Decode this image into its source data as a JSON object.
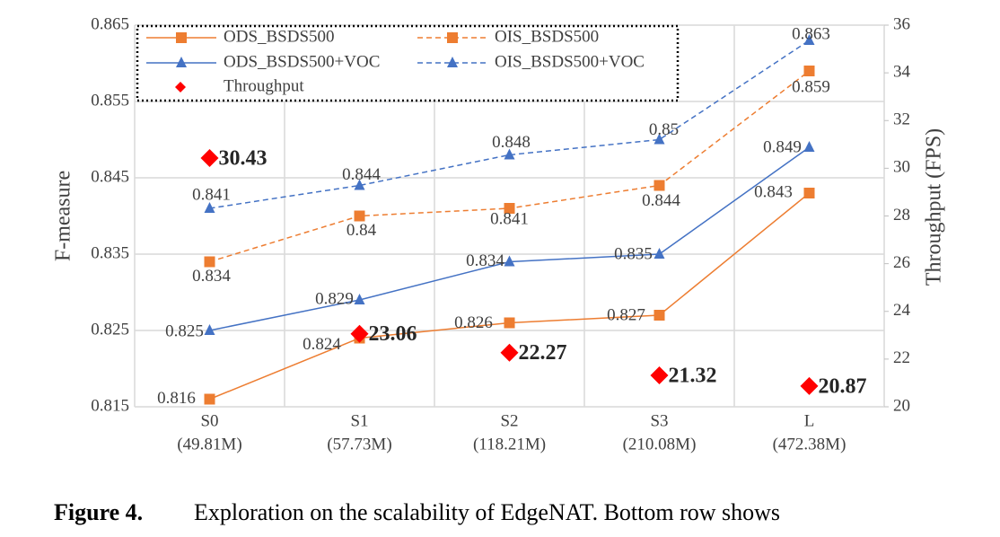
{
  "chart_data": {
    "type": "line",
    "categories": [
      "S0",
      "S1",
      "S2",
      "S3",
      "L"
    ],
    "category_params": [
      "(49.81M)",
      "(57.73M)",
      "(118.21M)",
      "(210.08M)",
      "(472.38M)"
    ],
    "ylabel": "F-measure",
    "y2label": "Throughput (FPS)",
    "ylim": [
      0.815,
      0.865
    ],
    "yticks": [
      0.815,
      0.825,
      0.835,
      0.845,
      0.855,
      0.865
    ],
    "y2lim": [
      20,
      36
    ],
    "y2ticks": [
      20,
      22,
      24,
      26,
      28,
      30,
      32,
      34,
      36
    ],
    "grid": true,
    "series": [
      {
        "name": "ODS_BSDS500",
        "color": "#ED7D31",
        "marker": "square",
        "dashed": false,
        "values": [
          0.816,
          0.824,
          0.826,
          0.827,
          0.843
        ]
      },
      {
        "name": "OIS_BSDS500",
        "color": "#ED7D31",
        "marker": "square",
        "dashed": true,
        "values": [
          0.834,
          0.84,
          0.841,
          0.844,
          0.859
        ]
      },
      {
        "name": "ODS_BSDS500+VOC",
        "color": "#4472C4",
        "marker": "triangle",
        "dashed": false,
        "values": [
          0.825,
          0.829,
          0.834,
          0.835,
          0.849
        ]
      },
      {
        "name": "OIS_BSDS500+VOC",
        "color": "#4472C4",
        "marker": "triangle",
        "dashed": true,
        "values": [
          0.841,
          0.844,
          0.848,
          0.85,
          0.863
        ]
      },
      {
        "name": "Throughput",
        "color": "#FF0000",
        "marker": "diamond",
        "axis": "y2",
        "values": [
          30.43,
          23.06,
          22.27,
          21.32,
          20.87
        ]
      }
    ]
  },
  "caption": {
    "label": "Figure 4.",
    "text": "Exploration on the scalability of EdgeNAT. Bottom row shows"
  }
}
